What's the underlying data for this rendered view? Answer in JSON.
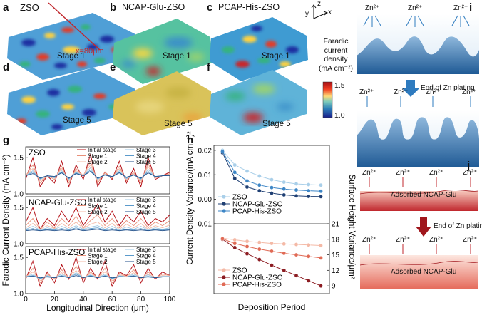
{
  "panels": {
    "a": {
      "letter": "a",
      "title": "ZSO",
      "stage": "Stage 1",
      "cut_label": "x=80μm"
    },
    "b": {
      "letter": "b",
      "title": "NCAP-Glu-ZSO",
      "stage": "Stage 1"
    },
    "c": {
      "letter": "c",
      "title": "PCAP-His-ZSO",
      "stage": "Stage 1"
    },
    "d": {
      "letter": "d",
      "stage": "Stage 5"
    },
    "e": {
      "letter": "e",
      "stage": "Stage 5"
    },
    "f": {
      "letter": "f",
      "stage": "Stage 5"
    },
    "g": {
      "letter": "g"
    },
    "h": {
      "letter": "h"
    },
    "i": {
      "letter": "i"
    },
    "j": {
      "letter": "j"
    }
  },
  "axes_icon": {
    "z": "z",
    "y": "y",
    "x": "x"
  },
  "colorbar": {
    "title_1": "Faradic",
    "title_2": "current",
    "title_3": "density",
    "title_4": "(mA cm⁻²)",
    "max": "1.5",
    "min": "1.0"
  },
  "schematic_i": {
    "ion": "Zn²⁺",
    "transition": "End of Zn plating"
  },
  "schematic_j": {
    "ion": "Zn²⁺",
    "layer": "Adsorbed NCAP-Glu",
    "transition": "End of Zn plating"
  },
  "colors": {
    "accent_red": "#c0272d",
    "initial": "#b5141b",
    "s1": "#e8907a",
    "s2": "#f3b9a6",
    "s3": "#9ec7e3",
    "s4": "#5b9acb",
    "s5": "#1f4e89"
  },
  "chart_data": [
    {
      "type": "line",
      "panel": "g",
      "xlabel": "Longitudinal Direction (μm)",
      "ylabel": "Faradic Current Density (mA cm⁻²)",
      "xlim": [
        0,
        100
      ],
      "xticks": [
        "0",
        "20",
        "40",
        "60",
        "80",
        "100"
      ],
      "legend": [
        "Initial stage",
        "Stage 1",
        "Stage 2",
        "Stage 3",
        "Stage 4",
        "Stage 5"
      ],
      "subplots": [
        {
          "name": "ZSO",
          "ylim": [
            1.0,
            1.65
          ],
          "yticks": [
            "1.0",
            "1.5"
          ],
          "x": [
            0,
            5,
            10,
            15,
            20,
            25,
            30,
            35,
            40,
            45,
            50,
            55,
            60,
            65,
            70,
            75,
            80,
            85,
            90,
            95,
            100
          ],
          "series": [
            {
              "name": "Initial stage",
              "values": [
                1.2,
                1.5,
                1.1,
                1.25,
                1.15,
                1.45,
                1.1,
                1.4,
                1.2,
                1.55,
                1.1,
                1.3,
                1.2,
                1.45,
                1.15,
                1.35,
                1.1,
                1.5,
                1.2,
                1.25,
                1.3
              ]
            },
            {
              "name": "Stage 1",
              "values": [
                1.25,
                1.4,
                1.15,
                1.25,
                1.2,
                1.38,
                1.15,
                1.35,
                1.25,
                1.45,
                1.15,
                1.3,
                1.22,
                1.38,
                1.18,
                1.3,
                1.15,
                1.42,
                1.22,
                1.25,
                1.28
              ]
            },
            {
              "name": "Stage 2",
              "values": [
                1.25,
                1.35,
                1.18,
                1.25,
                1.22,
                1.35,
                1.18,
                1.32,
                1.25,
                1.4,
                1.18,
                1.28,
                1.22,
                1.35,
                1.2,
                1.28,
                1.18,
                1.38,
                1.22,
                1.25,
                1.27
              ]
            },
            {
              "name": "Stage 3",
              "values": [
                1.25,
                1.32,
                1.2,
                1.25,
                1.22,
                1.32,
                1.2,
                1.3,
                1.25,
                1.36,
                1.2,
                1.27,
                1.23,
                1.32,
                1.21,
                1.27,
                1.2,
                1.34,
                1.23,
                1.25,
                1.26
              ]
            },
            {
              "name": "Stage 4",
              "values": [
                1.25,
                1.3,
                1.21,
                1.25,
                1.23,
                1.3,
                1.21,
                1.29,
                1.25,
                1.33,
                1.21,
                1.26,
                1.23,
                1.3,
                1.22,
                1.26,
                1.21,
                1.31,
                1.23,
                1.25,
                1.26
              ]
            },
            {
              "name": "Stage 5",
              "values": [
                1.25,
                1.28,
                1.22,
                1.25,
                1.24,
                1.29,
                1.22,
                1.28,
                1.25,
                1.31,
                1.22,
                1.26,
                1.24,
                1.29,
                1.23,
                1.26,
                1.22,
                1.29,
                1.24,
                1.25,
                1.25
              ]
            }
          ]
        },
        {
          "name": "NCAP-Glu-ZSO",
          "ylim": [
            1.0,
            1.65
          ],
          "yticks": [
            "1.0",
            "1.5"
          ],
          "x": [
            0,
            5,
            10,
            15,
            20,
            25,
            30,
            35,
            40,
            45,
            50,
            55,
            60,
            65,
            70,
            75,
            80,
            85,
            90,
            95,
            100
          ],
          "series": [
            {
              "name": "Initial stage",
              "values": [
                1.3,
                1.5,
                1.2,
                1.35,
                1.25,
                1.45,
                1.3,
                1.5,
                1.25,
                1.4,
                1.55,
                1.3,
                1.45,
                1.25,
                1.4,
                1.3,
                1.45,
                1.25,
                1.35,
                1.3,
                1.4
              ]
            },
            {
              "name": "Stage 1",
              "values": [
                1.25,
                1.35,
                1.2,
                1.3,
                1.22,
                1.35,
                1.25,
                1.38,
                1.22,
                1.32,
                1.4,
                1.25,
                1.35,
                1.22,
                1.32,
                1.25,
                1.35,
                1.22,
                1.3,
                1.25,
                1.32
              ]
            },
            {
              "name": "Stage 2",
              "values": [
                1.22,
                1.28,
                1.2,
                1.25,
                1.21,
                1.28,
                1.22,
                1.3,
                1.21,
                1.27,
                1.3,
                1.22,
                1.28,
                1.2,
                1.27,
                1.22,
                1.28,
                1.2,
                1.25,
                1.22,
                1.26
              ]
            },
            {
              "name": "Stage 3",
              "values": [
                1.2,
                1.24,
                1.19,
                1.22,
                1.2,
                1.24,
                1.2,
                1.25,
                1.2,
                1.23,
                1.25,
                1.2,
                1.24,
                1.19,
                1.23,
                1.2,
                1.24,
                1.19,
                1.22,
                1.2,
                1.22
              ]
            },
            {
              "name": "Stage 4",
              "values": [
                1.19,
                1.21,
                1.18,
                1.2,
                1.19,
                1.21,
                1.19,
                1.22,
                1.19,
                1.21,
                1.22,
                1.19,
                1.21,
                1.18,
                1.2,
                1.19,
                1.21,
                1.18,
                1.2,
                1.19,
                1.2
              ]
            },
            {
              "name": "Stage 5",
              "values": [
                1.18,
                1.19,
                1.18,
                1.19,
                1.18,
                1.19,
                1.18,
                1.2,
                1.18,
                1.19,
                1.2,
                1.18,
                1.19,
                1.18,
                1.19,
                1.18,
                1.19,
                1.18,
                1.19,
                1.18,
                1.19
              ]
            }
          ]
        },
        {
          "name": "PCAP-His-ZSO",
          "ylim": [
            1.0,
            1.65
          ],
          "yticks": [
            "1.0",
            "1.5"
          ],
          "x": [
            0,
            5,
            10,
            15,
            20,
            25,
            30,
            35,
            40,
            45,
            50,
            55,
            60,
            65,
            70,
            75,
            80,
            85,
            90,
            95,
            100
          ],
          "series": [
            {
              "name": "Initial stage",
              "values": [
                1.2,
                1.45,
                1.1,
                1.3,
                1.15,
                1.4,
                1.2,
                1.5,
                1.15,
                1.35,
                1.2,
                1.45,
                1.1,
                1.3,
                1.25,
                1.4,
                1.15,
                1.35,
                1.2,
                1.3,
                1.25
              ]
            },
            {
              "name": "Stage 1",
              "values": [
                1.22,
                1.35,
                1.15,
                1.28,
                1.2,
                1.33,
                1.22,
                1.38,
                1.2,
                1.3,
                1.22,
                1.35,
                1.15,
                1.28,
                1.24,
                1.33,
                1.2,
                1.3,
                1.22,
                1.27,
                1.25
              ]
            },
            {
              "name": "Stage 2",
              "values": [
                1.23,
                1.3,
                1.18,
                1.26,
                1.21,
                1.29,
                1.22,
                1.32,
                1.21,
                1.28,
                1.22,
                1.3,
                1.18,
                1.26,
                1.24,
                1.29,
                1.21,
                1.27,
                1.22,
                1.25,
                1.24
              ]
            },
            {
              "name": "Stage 3",
              "values": [
                1.23,
                1.27,
                1.2,
                1.25,
                1.22,
                1.27,
                1.22,
                1.29,
                1.22,
                1.26,
                1.22,
                1.27,
                1.2,
                1.25,
                1.23,
                1.27,
                1.22,
                1.26,
                1.22,
                1.24,
                1.24
              ]
            },
            {
              "name": "Stage 4",
              "values": [
                1.23,
                1.25,
                1.21,
                1.24,
                1.22,
                1.25,
                1.22,
                1.27,
                1.22,
                1.25,
                1.22,
                1.25,
                1.21,
                1.24,
                1.23,
                1.25,
                1.22,
                1.24,
                1.22,
                1.23,
                1.23
              ]
            },
            {
              "name": "Stage 5",
              "values": [
                1.23,
                1.24,
                1.22,
                1.23,
                1.22,
                1.24,
                1.22,
                1.25,
                1.22,
                1.24,
                1.22,
                1.24,
                1.22,
                1.23,
                1.23,
                1.24,
                1.22,
                1.23,
                1.22,
                1.23,
                1.23
              ]
            }
          ]
        }
      ]
    },
    {
      "type": "line",
      "panel": "h-top",
      "xlabel": "Deposition Period",
      "ylabel": "Current Density Variance/(mA cm⁻²)²",
      "ylim": [
        -0.01,
        0.022
      ],
      "yticks": [
        "-0.01",
        "0.00",
        "0.01",
        "0.02"
      ],
      "x": [
        1,
        2,
        3,
        4,
        5,
        6,
        7,
        8,
        9
      ],
      "series": [
        {
          "name": "ZSO",
          "values": [
            0.02,
            0.014,
            0.0115,
            0.0095,
            0.008,
            0.007,
            0.0063,
            0.006,
            0.0058
          ]
        },
        {
          "name": "NCAP-Glu-ZSO",
          "values": [
            0.019,
            0.0085,
            0.005,
            0.0035,
            0.0025,
            0.0018,
            0.0014,
            0.0012,
            0.0011
          ]
        },
        {
          "name": "PCAP-His-ZSO",
          "values": [
            0.0195,
            0.011,
            0.0075,
            0.0058,
            0.0048,
            0.0042,
            0.0038,
            0.0035,
            0.0033
          ]
        }
      ]
    },
    {
      "type": "line",
      "panel": "h-bottom",
      "xlabel": "Deposition Period",
      "ylabel": "Surface Height Variance/μm²",
      "ylim": [
        7.5,
        21
      ],
      "yticks": [
        "9",
        "12",
        "15",
        "18",
        "21"
      ],
      "x": [
        1,
        2,
        3,
        4,
        5,
        6,
        7,
        8,
        9
      ],
      "series": [
        {
          "name": "ZSO",
          "values": [
            18.2,
            17.9,
            17.6,
            17.4,
            17.2,
            17.1,
            17.0,
            16.9,
            16.8
          ]
        },
        {
          "name": "NCAP-Glu-ZSO",
          "values": [
            18.0,
            16.4,
            15.2,
            14.1,
            13.0,
            12.0,
            11.0,
            10.0,
            9.0
          ]
        },
        {
          "name": "PCAP-His-ZSO",
          "values": [
            18.1,
            17.2,
            16.6,
            16.1,
            15.7,
            15.3,
            15.0,
            14.7,
            14.4
          ]
        }
      ]
    }
  ]
}
